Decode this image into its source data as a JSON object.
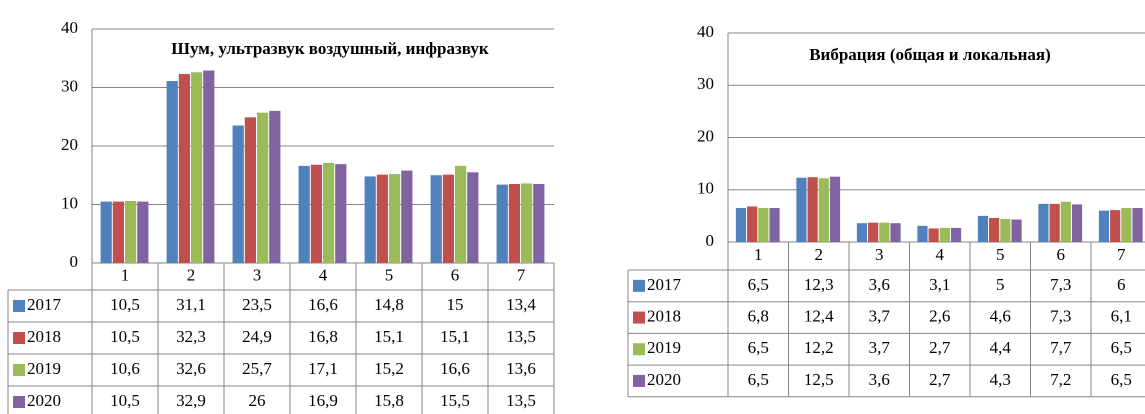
{
  "chart_data": [
    {
      "type": "bar",
      "title": "Шум, ультразвук воздушный, инфразвук",
      "categories": [
        "1",
        "2",
        "3",
        "4",
        "5",
        "6",
        "7"
      ],
      "series": [
        {
          "name": "2017",
          "color": "#4f81bd",
          "values": [
            10.5,
            31.1,
            23.5,
            16.6,
            14.8,
            15,
            13.4
          ],
          "value_labels": [
            "10,5",
            "31,1",
            "23,5",
            "16,6",
            "14,8",
            "15",
            "13,4"
          ]
        },
        {
          "name": "2018",
          "color": "#c0504d",
          "values": [
            10.5,
            32.3,
            24.9,
            16.8,
            15.1,
            15.1,
            13.5
          ],
          "value_labels": [
            "10,5",
            "32,3",
            "24,9",
            "16,8",
            "15,1",
            "15,1",
            "13,5"
          ]
        },
        {
          "name": "2019",
          "color": "#9bbb59",
          "values": [
            10.6,
            32.6,
            25.7,
            17.1,
            15.2,
            16.6,
            13.6
          ],
          "value_labels": [
            "10,6",
            "32,6",
            "25,7",
            "17,1",
            "15,2",
            "16,6",
            "13,6"
          ]
        },
        {
          "name": "2020",
          "color": "#8064a2",
          "values": [
            10.5,
            32.9,
            26,
            16.9,
            15.8,
            15.5,
            13.5
          ],
          "value_labels": [
            "10,5",
            "32,9",
            "26",
            "16,9",
            "15,8",
            "15,5",
            "13,5"
          ]
        }
      ],
      "ylim": [
        0,
        40
      ],
      "yticks": [
        0,
        10,
        20,
        30,
        40
      ],
      "grid": true
    },
    {
      "type": "bar",
      "title": "Вибрация (общая и локальная)",
      "categories": [
        "1",
        "2",
        "3",
        "4",
        "5",
        "6",
        "7"
      ],
      "series": [
        {
          "name": "2017",
          "color": "#4f81bd",
          "values": [
            6.5,
            12.3,
            3.6,
            3.1,
            5,
            7.3,
            6
          ],
          "value_labels": [
            "6,5",
            "12,3",
            "3,6",
            "3,1",
            "5",
            "7,3",
            "6"
          ]
        },
        {
          "name": "2018",
          "color": "#c0504d",
          "values": [
            6.8,
            12.4,
            3.7,
            2.6,
            4.6,
            7.3,
            6.1
          ],
          "value_labels": [
            "6,8",
            "12,4",
            "3,7",
            "2,6",
            "4,6",
            "7,3",
            "6,1"
          ]
        },
        {
          "name": "2019",
          "color": "#9bbb59",
          "values": [
            6.5,
            12.2,
            3.7,
            2.7,
            4.4,
            7.7,
            6.5
          ],
          "value_labels": [
            "6,5",
            "12,2",
            "3,7",
            "2,7",
            "4,4",
            "7,7",
            "6,5"
          ]
        },
        {
          "name": "2020",
          "color": "#8064a2",
          "values": [
            6.5,
            12.5,
            3.6,
            2.7,
            4.3,
            7.2,
            6.5
          ],
          "value_labels": [
            "6,5",
            "12,5",
            "3,6",
            "2,7",
            "4,3",
            "7,2",
            "6,5"
          ]
        }
      ],
      "ylim": [
        0,
        40
      ],
      "yticks": [
        0,
        10,
        20,
        30,
        40
      ],
      "grid": true
    }
  ]
}
